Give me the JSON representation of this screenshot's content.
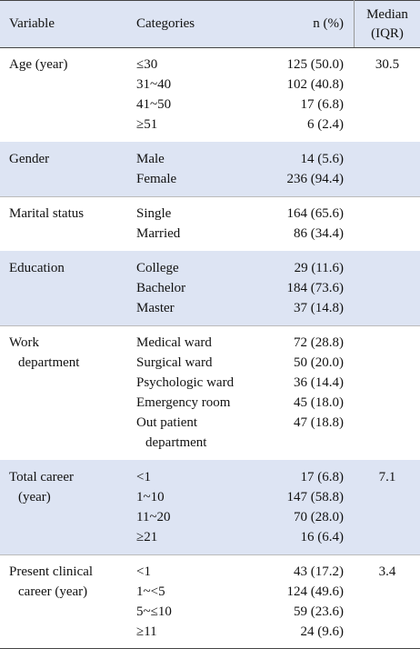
{
  "header": {
    "variable": "Variable",
    "categories": "Categories",
    "n": "n (%)",
    "median": [
      "Median",
      "(IQR)"
    ]
  },
  "groups": [
    {
      "variable": [
        "Age (year)"
      ],
      "median": "30.5",
      "rows": [
        {
          "category": [
            "≤30"
          ],
          "n": "125 (50.0)"
        },
        {
          "category": [
            "31~40"
          ],
          "n": "102 (40.8)"
        },
        {
          "category": [
            "41~50"
          ],
          "n": "17 (6.8)"
        },
        {
          "category": [
            "≥51"
          ],
          "n": "6 (2.4)"
        }
      ]
    },
    {
      "variable": [
        "Gender"
      ],
      "rows": [
        {
          "category": [
            "Male"
          ],
          "n": "14 (5.6)"
        },
        {
          "category": [
            "Female"
          ],
          "n": "236 (94.4)"
        }
      ]
    },
    {
      "variable": [
        "Marital status"
      ],
      "rows": [
        {
          "category": [
            "Single"
          ],
          "n": "164 (65.6)"
        },
        {
          "category": [
            "Married"
          ],
          "n": "86 (34.4)"
        }
      ]
    },
    {
      "variable": [
        "Education"
      ],
      "rows": [
        {
          "category": [
            "College"
          ],
          "n": "29 (11.6)"
        },
        {
          "category": [
            "Bachelor"
          ],
          "n": "184 (73.6)"
        },
        {
          "category": [
            "Master"
          ],
          "n": "37 (14.8)"
        }
      ]
    },
    {
      "variable": [
        "Work",
        "department"
      ],
      "rows": [
        {
          "category": [
            "Medical ward"
          ],
          "n": "72 (28.8)"
        },
        {
          "category": [
            "Surgical ward"
          ],
          "n": "50 (20.0)"
        },
        {
          "category": [
            "Psychologic ward"
          ],
          "n": "36 (14.4)"
        },
        {
          "category": [
            "Emergency room"
          ],
          "n": "45 (18.0)"
        },
        {
          "category": [
            "Out patient",
            "department"
          ],
          "n": "47 (18.8)"
        }
      ]
    },
    {
      "variable": [
        "Total career",
        "(year)"
      ],
      "median": "7.1",
      "rows": [
        {
          "category": [
            "<1"
          ],
          "n": "17 (6.8)"
        },
        {
          "category": [
            "1~10"
          ],
          "n": "147 (58.8)"
        },
        {
          "category": [
            "11~20"
          ],
          "n": "70 (28.0)"
        },
        {
          "category": [
            "≥21"
          ],
          "n": "16 (6.4)"
        }
      ]
    },
    {
      "variable": [
        "Present clinical",
        "career (year)"
      ],
      "median": "3.4",
      "rows": [
        {
          "category": [
            "<1"
          ],
          "n": "43 (17.2)"
        },
        {
          "category": [
            "1~<5"
          ],
          "n": "124 (49.6)"
        },
        {
          "category": [
            "5~≤10"
          ],
          "n": "59 (23.6)"
        },
        {
          "category": [
            "≥11"
          ],
          "n": "24 (9.6)"
        }
      ]
    }
  ]
}
